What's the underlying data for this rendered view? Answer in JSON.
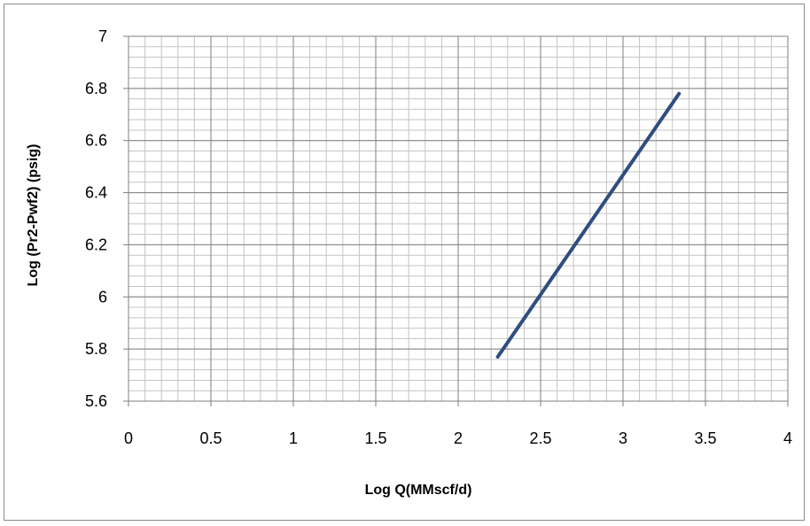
{
  "chart_data": {
    "type": "line",
    "title": "",
    "xlabel": "Log Q(MMscf/d)",
    "ylabel": "Log (Pr2-Pwf2) (psig)",
    "xlim": [
      0,
      4
    ],
    "ylim": [
      5.6,
      7
    ],
    "x_ticks": [
      "0",
      "0.5",
      "1",
      "1.5",
      "2",
      "2.5",
      "3",
      "3.5",
      "4"
    ],
    "y_ticks": [
      "5.6",
      "5.8",
      "6",
      "6.2",
      "6.4",
      "6.6",
      "6.8",
      "7"
    ],
    "grid": true,
    "legend": "none",
    "series": [
      {
        "color": "#2e4e7e",
        "x": [
          2.24,
          3.34
        ],
        "y": [
          5.77,
          6.78
        ]
      }
    ]
  }
}
